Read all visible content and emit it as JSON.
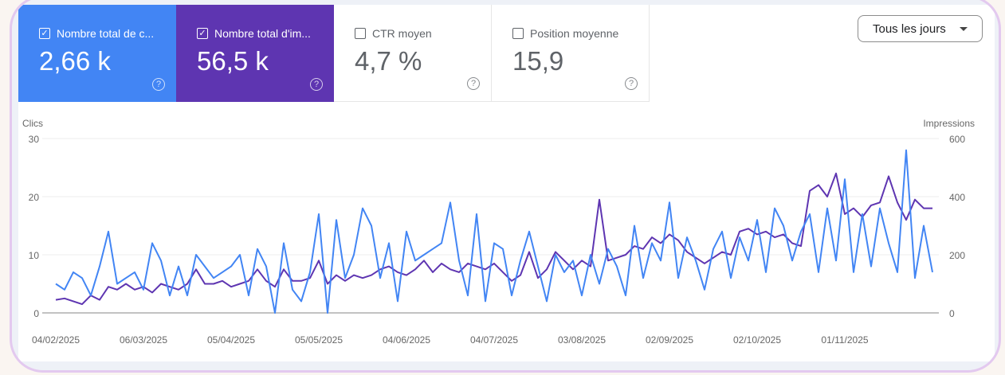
{
  "metrics": [
    {
      "label": "Nombre total de c...",
      "value": "2,66 k",
      "checked": true,
      "color": "#4285f4"
    },
    {
      "label": "Nombre total d'im...",
      "value": "56,5 k",
      "checked": true,
      "color": "#5e35b1"
    },
    {
      "label": "CTR moyen",
      "value": "4,7 %",
      "checked": false
    },
    {
      "label": "Position moyenne",
      "value": "15,9",
      "checked": false
    }
  ],
  "icons": {
    "checked": "checkbox-checked-icon",
    "unchecked": "checkbox-icon",
    "help": "help-circle-icon",
    "dropdown": "caret-down-icon"
  },
  "date_filter": {
    "label": "Tous les jours"
  },
  "chart_data": {
    "type": "line",
    "ylabel_left": "Clics",
    "ylabel_right": "Impressions",
    "ylim_left": [
      0,
      30
    ],
    "ylim_right": [
      0,
      600
    ],
    "yticks_left": [
      "0",
      "10",
      "20",
      "30"
    ],
    "yticks_right": [
      "0",
      "200",
      "400",
      "600"
    ],
    "xticks": [
      "04/02/2025",
      "06/03/2025",
      "05/04/2025",
      "05/05/2025",
      "04/06/2025",
      "04/07/2025",
      "03/08/2025",
      "02/09/2025",
      "02/10/2025",
      "01/11/2025"
    ],
    "grid": true,
    "x": [
      "04/02/2025",
      "07/02/2025",
      "10/02/2025",
      "13/02/2025",
      "16/02/2025",
      "19/02/2025",
      "22/02/2025",
      "25/02/2025",
      "28/02/2025",
      "03/03/2025",
      "06/03/2025",
      "09/03/2025",
      "12/03/2025",
      "15/03/2025",
      "18/03/2025",
      "21/03/2025",
      "24/03/2025",
      "27/03/2025",
      "30/03/2025",
      "02/04/2025",
      "05/04/2025",
      "08/04/2025",
      "11/04/2025",
      "14/04/2025",
      "17/04/2025",
      "20/04/2025",
      "23/04/2025",
      "26/04/2025",
      "29/04/2025",
      "02/05/2025",
      "05/05/2025",
      "08/05/2025",
      "11/05/2025",
      "14/05/2025",
      "17/05/2025",
      "20/05/2025",
      "23/05/2025",
      "26/05/2025",
      "29/05/2025",
      "01/06/2025",
      "04/06/2025",
      "07/06/2025",
      "10/06/2025",
      "13/06/2025",
      "16/06/2025",
      "19/06/2025",
      "22/06/2025",
      "25/06/2025",
      "28/06/2025",
      "01/07/2025",
      "04/07/2025",
      "07/07/2025",
      "10/07/2025",
      "13/07/2025",
      "16/07/2025",
      "19/07/2025",
      "22/07/2025",
      "25/07/2025",
      "28/07/2025",
      "31/07/2025",
      "03/08/2025",
      "06/08/2025",
      "09/08/2025",
      "12/08/2025",
      "15/08/2025",
      "18/08/2025",
      "21/08/2025",
      "24/08/2025",
      "27/08/2025",
      "30/08/2025",
      "02/09/2025",
      "05/09/2025",
      "08/09/2025",
      "11/09/2025",
      "14/09/2025",
      "17/09/2025",
      "20/09/2025",
      "23/09/2025",
      "26/09/2025",
      "29/09/2025",
      "02/10/2025",
      "05/10/2025",
      "08/10/2025",
      "11/10/2025",
      "14/10/2025",
      "17/10/2025",
      "20/10/2025",
      "23/10/2025",
      "26/10/2025",
      "29/10/2025",
      "01/11/2025",
      "04/11/2025",
      "07/11/2025",
      "10/11/2025",
      "13/11/2025",
      "16/11/2025",
      "19/11/2025",
      "22/11/2025",
      "25/11/2025",
      "28/11/2025",
      "01/12/2025"
    ],
    "series": [
      {
        "name": "Clics",
        "axis": "left",
        "color": "#4285f4",
        "values": [
          5,
          4,
          7,
          6,
          3,
          8,
          14,
          5,
          6,
          7,
          4,
          12,
          9,
          3,
          8,
          3,
          10,
          8,
          6,
          7,
          8,
          10,
          3,
          11,
          8,
          0,
          12,
          4,
          2,
          7,
          17,
          0,
          16,
          6,
          10,
          18,
          15,
          6,
          12,
          2,
          14,
          9,
          10,
          11,
          12,
          19,
          9,
          3,
          17,
          2,
          12,
          11,
          3,
          9,
          14,
          8,
          2,
          10,
          7,
          9,
          3,
          10,
          5,
          11,
          8,
          3,
          15,
          6,
          12,
          9,
          19,
          6,
          13,
          9,
          4,
          11,
          14,
          6,
          13,
          9,
          16,
          7,
          18,
          15,
          9,
          14,
          17,
          7,
          18,
          9,
          23,
          7,
          17,
          8,
          18,
          12,
          7,
          28,
          6,
          15,
          7
        ]
      },
      {
        "name": "Impressions",
        "axis": "right",
        "color": "#5e35b1",
        "values": [
          45,
          50,
          40,
          30,
          60,
          45,
          90,
          80,
          100,
          80,
          90,
          70,
          100,
          90,
          80,
          100,
          150,
          100,
          100,
          110,
          90,
          100,
          110,
          150,
          110,
          90,
          150,
          110,
          110,
          120,
          180,
          100,
          130,
          110,
          130,
          120,
          130,
          150,
          160,
          140,
          130,
          150,
          180,
          140,
          170,
          150,
          140,
          170,
          160,
          150,
          170,
          140,
          110,
          130,
          210,
          120,
          150,
          210,
          180,
          150,
          180,
          160,
          390,
          180,
          190,
          200,
          230,
          220,
          260,
          240,
          270,
          250,
          210,
          190,
          170,
          190,
          210,
          200,
          280,
          290,
          270,
          280,
          260,
          270,
          240,
          230,
          420,
          440,
          400,
          480,
          340,
          360,
          330,
          370,
          380,
          470,
          380,
          320,
          390,
          360,
          360
        ]
      }
    ]
  }
}
